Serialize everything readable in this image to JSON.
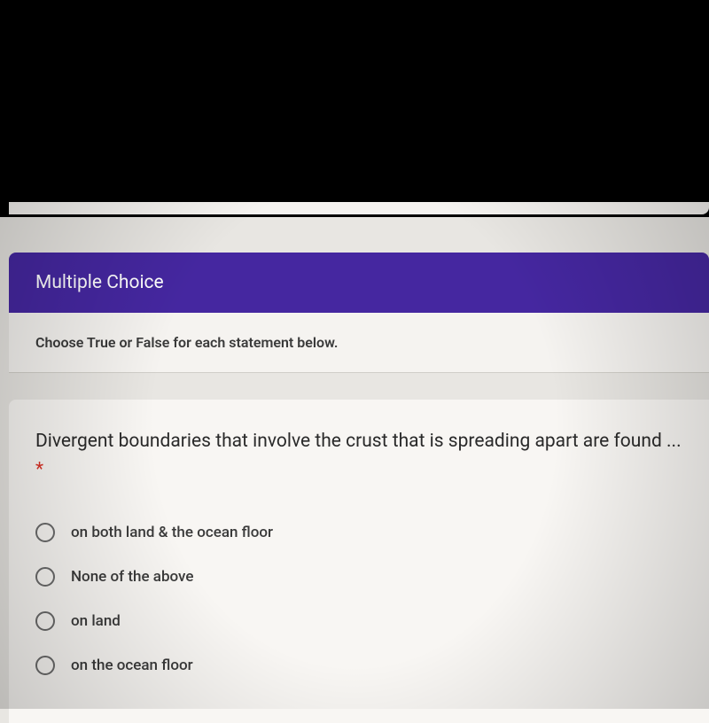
{
  "section": {
    "title": "Multiple Choice",
    "header_bg": "#4527a0",
    "header_color": "#ffffff"
  },
  "instruction": {
    "text": "Choose True or False for each statement below."
  },
  "question": {
    "text": "Divergent boundaries that involve the crust that is spreading apart are found ...",
    "required_marker": "*",
    "options": [
      {
        "label": "on both land & the ocean floor"
      },
      {
        "label": "None of the above"
      },
      {
        "label": "on land"
      },
      {
        "label": "on the ocean floor"
      }
    ]
  },
  "colors": {
    "page_bg": "#000000",
    "form_bg": "#e8e6e2",
    "card_bg": "#f8f6f3",
    "instruction_bg": "#f5f3f0",
    "text_primary": "#2a2a2a",
    "text_secondary": "#3a3a3a",
    "radio_border": "#6a6a6a",
    "required": "#d93025"
  }
}
